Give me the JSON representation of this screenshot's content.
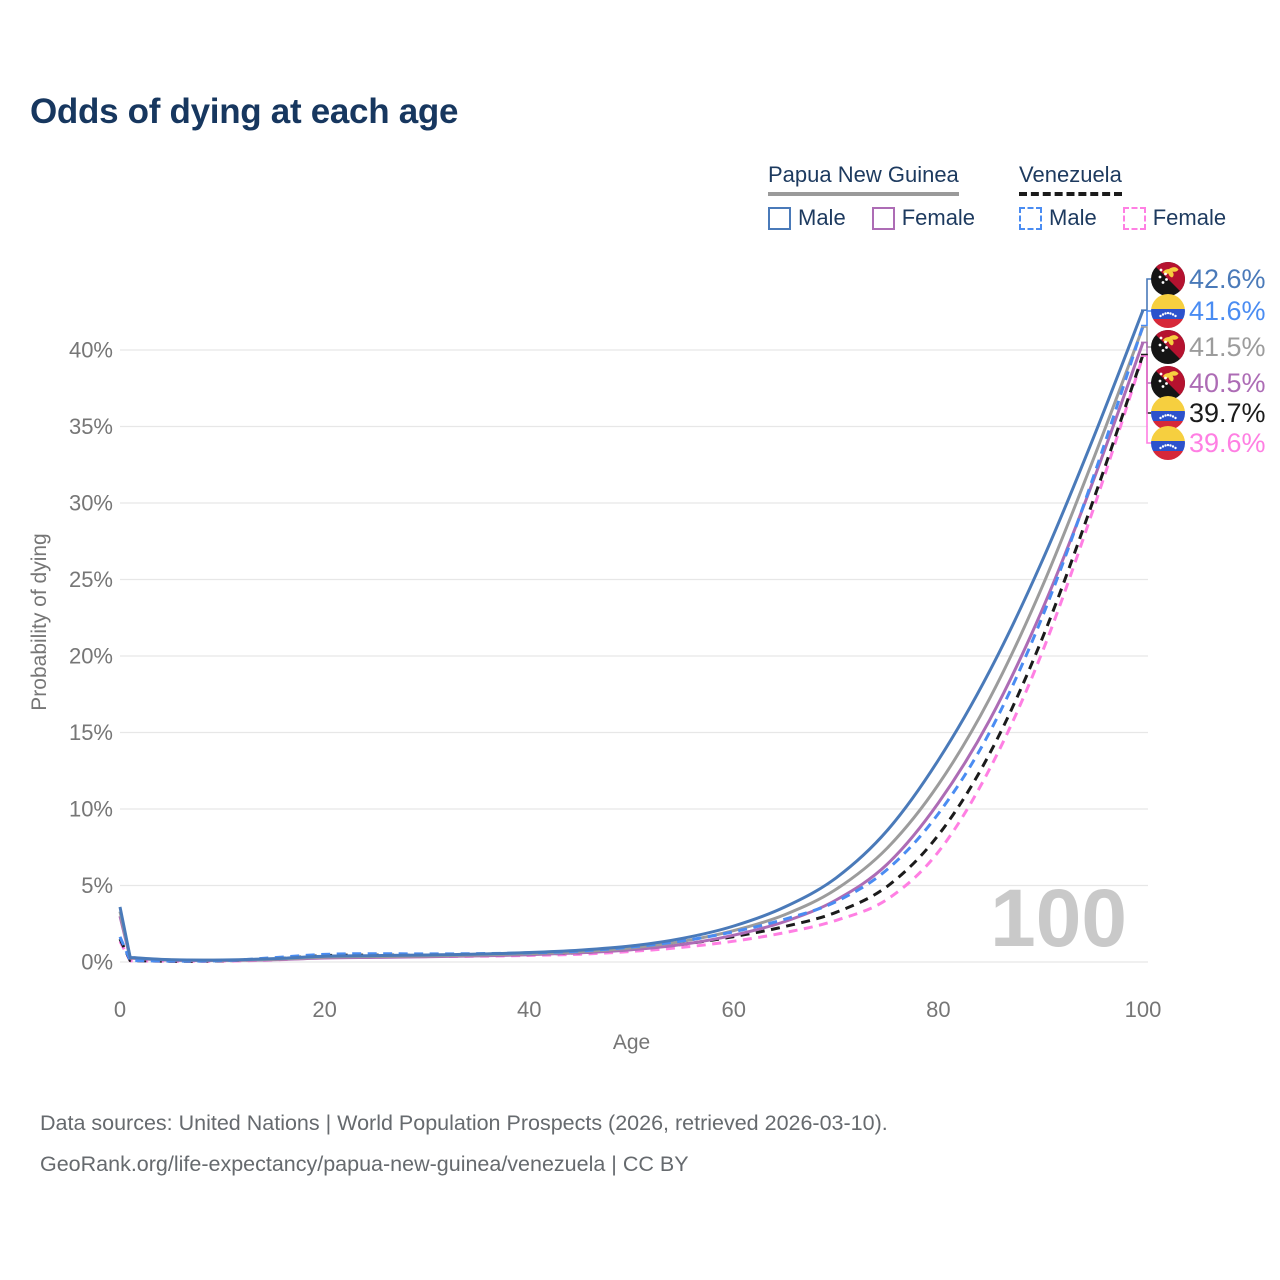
{
  "header": {
    "title": "Odds of dying at each age"
  },
  "legend": {
    "groups": [
      {
        "label": "Papua New Guinea",
        "line_style": "solid",
        "line_color": "#9a9a9a",
        "items": [
          {
            "label": "Male",
            "color": "#4a7ab9",
            "dashed": false
          },
          {
            "label": "Female",
            "color": "#ad6cb5",
            "dashed": false
          }
        ]
      },
      {
        "label": "Venezuela",
        "line_style": "dashed",
        "line_color": "#1b1b1b",
        "items": [
          {
            "label": "Male",
            "color": "#4a8cf2",
            "dashed": true
          },
          {
            "label": "Female",
            "color": "#ff7fe3",
            "dashed": true
          }
        ]
      }
    ]
  },
  "chart_data": {
    "type": "line",
    "title": "Odds of dying at each age",
    "xlabel": "Age",
    "ylabel": "Probability of dying",
    "xlim": [
      0,
      100
    ],
    "ylim": [
      0,
      45
    ],
    "grid": "horizontal",
    "x_ticks": [
      0,
      20,
      40,
      60,
      80,
      100
    ],
    "y_tick_labels": [
      "0%",
      "5%",
      "10%",
      "15%",
      "20%",
      "25%",
      "30%",
      "35%",
      "40%"
    ],
    "age_indicator": "100",
    "x": [
      0,
      1,
      5,
      10,
      15,
      20,
      25,
      30,
      35,
      40,
      45,
      50,
      55,
      60,
      65,
      70,
      75,
      80,
      85,
      90,
      95,
      100
    ],
    "series": [
      {
        "id": "png-male",
        "name": "Papua New Guinea Male",
        "color": "#4a7ab9",
        "dashed": false,
        "flag": "png",
        "end_label": "42.6%",
        "values": [
          3.6,
          0.3,
          0.15,
          0.13,
          0.22,
          0.38,
          0.42,
          0.46,
          0.52,
          0.62,
          0.78,
          1.05,
          1.55,
          2.35,
          3.6,
          5.5,
          8.6,
          13.2,
          19.0,
          26.0,
          34.0,
          42.6
        ]
      },
      {
        "id": "ven-male",
        "name": "Venezuela Male",
        "color": "#4a8cf2",
        "dashed": true,
        "flag": "ven",
        "end_label": "41.6%",
        "values": [
          1.65,
          0.1,
          0.06,
          0.09,
          0.28,
          0.5,
          0.54,
          0.53,
          0.55,
          0.6,
          0.72,
          0.98,
          1.38,
          1.98,
          2.8,
          3.95,
          6.05,
          9.7,
          15.0,
          22.3,
          31.4,
          41.6
        ]
      },
      {
        "id": "png-both",
        "name": "Papua New Guinea",
        "color": "#9c9c9c",
        "dashed": false,
        "flag": "png",
        "end_label": "41.5%",
        "values": [
          3.3,
          0.27,
          0.14,
          0.12,
          0.18,
          0.32,
          0.36,
          0.4,
          0.46,
          0.55,
          0.68,
          0.92,
          1.35,
          2.05,
          3.1,
          4.75,
          7.45,
          11.6,
          17.2,
          24.3,
          32.6,
          41.5
        ]
      },
      {
        "id": "png-female",
        "name": "Papua New Guinea Female",
        "color": "#ad6cb5",
        "dashed": false,
        "flag": "png",
        "end_label": "40.5%",
        "values": [
          3.0,
          0.24,
          0.12,
          0.1,
          0.15,
          0.26,
          0.3,
          0.34,
          0.4,
          0.48,
          0.6,
          0.8,
          1.15,
          1.75,
          2.65,
          4.05,
          6.4,
          10.4,
          15.8,
          22.8,
          31.2,
          40.5
        ]
      },
      {
        "id": "ven-both",
        "name": "Venezuela",
        "color": "#1b1b1b",
        "dashed": true,
        "flag": "ven",
        "end_label": "39.7%",
        "values": [
          1.5,
          0.09,
          0.05,
          0.08,
          0.2,
          0.42,
          0.45,
          0.44,
          0.46,
          0.51,
          0.61,
          0.83,
          1.16,
          1.66,
          2.32,
          3.25,
          4.95,
          8.3,
          13.6,
          20.9,
          29.9,
          39.7
        ]
      },
      {
        "id": "ven-female",
        "name": "Venezuela Female",
        "color": "#ff7fe3",
        "dashed": true,
        "flag": "ven",
        "end_label": "39.6%",
        "values": [
          1.35,
          0.08,
          0.05,
          0.06,
          0.13,
          0.3,
          0.34,
          0.35,
          0.38,
          0.43,
          0.51,
          0.69,
          0.96,
          1.36,
          1.92,
          2.72,
          4.1,
          7.2,
          12.6,
          20.0,
          29.3,
          39.6
        ]
      }
    ]
  },
  "footer": {
    "line1": "Data sources: United Nations | World Population Prospects (2026, retrieved 2026-03-10).",
    "line2": "GeoRank.org/life-expectancy/papua-new-guinea/venezuela | CC BY"
  }
}
